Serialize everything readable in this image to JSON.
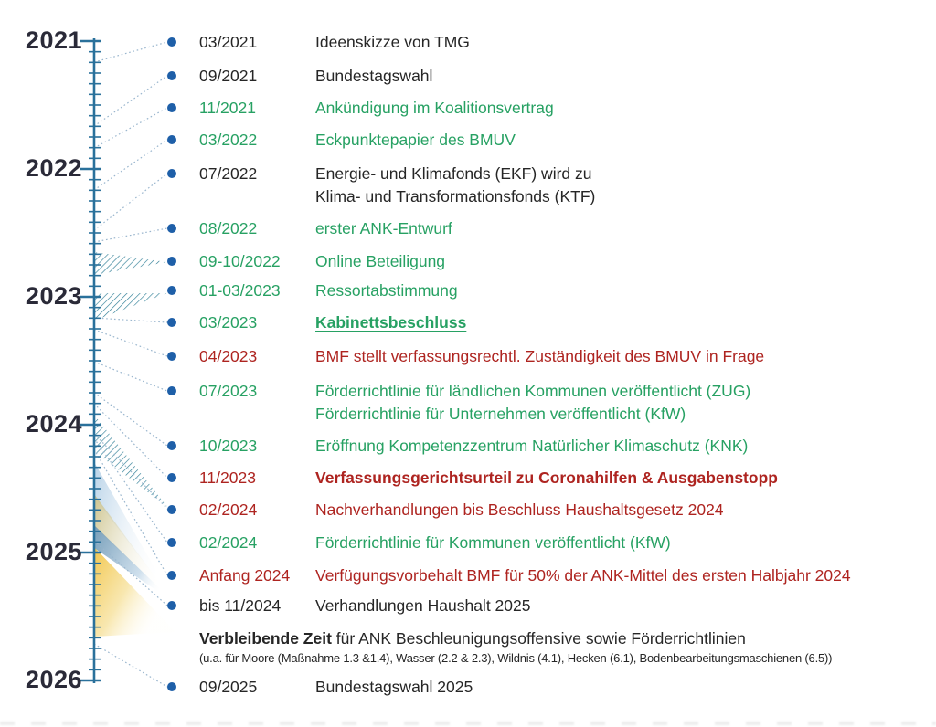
{
  "palette": {
    "text_black": "#262626",
    "text_green": "#27a163",
    "text_red": "#ae2420",
    "dot_blue": "#1e5fa8",
    "axis_teal": "#2a719b",
    "year_label": "#2a2a38",
    "connector_blue": "#9ab6ce",
    "hatch_teal": "#2e7e96",
    "wedge_gold": "#f2c445",
    "wedge_steel_blue": "#6d97b4",
    "wedge_khaki": "#c9bf85"
  },
  "timeline": {
    "years": [
      "2021",
      "2022",
      "2023",
      "2024",
      "2025",
      "2026"
    ]
  },
  "events": [
    {
      "date": "03/2021",
      "date_color": "black",
      "lines": [
        {
          "text": "Ideenskizze von TMG",
          "color": "black",
          "bold": false,
          "underline": false
        }
      ]
    },
    {
      "date": "09/2021",
      "date_color": "black",
      "lines": [
        {
          "text": "Bundestagswahl",
          "color": "black",
          "bold": false,
          "underline": false
        }
      ]
    },
    {
      "date": "11/2021",
      "date_color": "green",
      "lines": [
        {
          "text": "Ankündigung im Koalitionsvertrag",
          "color": "green",
          "bold": false,
          "underline": false
        }
      ]
    },
    {
      "date": "03/2022",
      "date_color": "green",
      "lines": [
        {
          "text": "Eckpunktepapier des BMUV",
          "color": "green",
          "bold": false,
          "underline": false
        }
      ]
    },
    {
      "date": "07/2022",
      "date_color": "black",
      "lines": [
        {
          "text": "Energie- und Klimafonds (EKF) wird zu",
          "color": "black",
          "bold": false,
          "underline": false
        },
        {
          "text": "Klima- und Transformationsfonds (KTF)",
          "color": "black",
          "bold": false,
          "underline": false
        }
      ]
    },
    {
      "date": "08/2022",
      "date_color": "green",
      "lines": [
        {
          "text": "erster ANK-Entwurf",
          "color": "green",
          "bold": false,
          "underline": false
        }
      ]
    },
    {
      "date": "09-10/2022",
      "date_color": "green",
      "lines": [
        {
          "text": "Online Beteiligung",
          "color": "green",
          "bold": false,
          "underline": false
        }
      ]
    },
    {
      "date": "01-03/2023",
      "date_color": "green",
      "lines": [
        {
          "text": "Ressortabstimmung",
          "color": "green",
          "bold": false,
          "underline": false
        }
      ]
    },
    {
      "date": "03/2023",
      "date_color": "green",
      "lines": [
        {
          "text": "Kabinettsbeschluss",
          "color": "green",
          "bold": true,
          "underline": true
        }
      ]
    },
    {
      "date": "04/2023",
      "date_color": "red",
      "lines": [
        {
          "text": "BMF stellt verfassungsrechtl. Zuständigkeit des BMUV in Frage",
          "color": "red",
          "bold": false,
          "underline": false
        }
      ]
    },
    {
      "date": "07/2023",
      "date_color": "green",
      "lines": [
        {
          "text": "Förderrichtlinie für ländlichen Kommunen veröffentlicht (ZUG)",
          "color": "green",
          "bold": false,
          "underline": false
        },
        {
          "text": "Förderrichtlinie für Unternehmen veröffentlicht (KfW)",
          "color": "green",
          "bold": false,
          "underline": false
        }
      ]
    },
    {
      "date": "10/2023",
      "date_color": "green",
      "lines": [
        {
          "text": "Eröffnung Kompetenzzentrum Natürlicher Klimaschutz (KNK)",
          "color": "green",
          "bold": false,
          "underline": false
        }
      ]
    },
    {
      "date": "11/2023",
      "date_color": "red",
      "lines": [
        {
          "text": "Verfassungsgerichtsurteil zu Coronahilfen & Ausgabenstopp",
          "color": "red",
          "bold": true,
          "underline": false
        }
      ]
    },
    {
      "date": "02/2024",
      "date_color": "red",
      "lines": [
        {
          "text": "Nachverhandlungen bis Beschluss Haushaltsgesetz 2024",
          "color": "red",
          "bold": false,
          "underline": false
        }
      ]
    },
    {
      "date": "02/2024",
      "date_color": "green",
      "lines": [
        {
          "text": "Förderrichtlinie für Kommunen veröffentlicht (KfW)",
          "color": "green",
          "bold": false,
          "underline": false
        }
      ]
    },
    {
      "date": "Anfang 2024",
      "date_color": "red",
      "lines": [
        {
          "text": "Verfügungsvorbehalt BMF für 50% der ANK-Mittel des ersten Halbjahr 2024",
          "color": "red",
          "bold": false,
          "underline": false
        }
      ]
    },
    {
      "date": "bis 11/2024",
      "date_color": "black",
      "lines": [
        {
          "text": "Verhandlungen Haushalt 2025",
          "color": "black",
          "bold": false,
          "underline": false
        }
      ]
    },
    {
      "date": "09/2025",
      "date_color": "black",
      "lines": [
        {
          "text": "Bundestagswahl 2025",
          "color": "black",
          "bold": false,
          "underline": false
        }
      ]
    }
  ],
  "note": {
    "title_bold": "Verbleibende Zeit",
    "title_rest": " für  ANK Beschleunigungsoffensive sowie Förderrichtlinien",
    "subtext": "(u.a. für Moore (Maßnahme 1.3 &1.4), Wasser (2.2 & 2.3), Wildnis (4.1), Hecken (6.1), Bodenbearbeitungsmaschienen (6.5))"
  }
}
